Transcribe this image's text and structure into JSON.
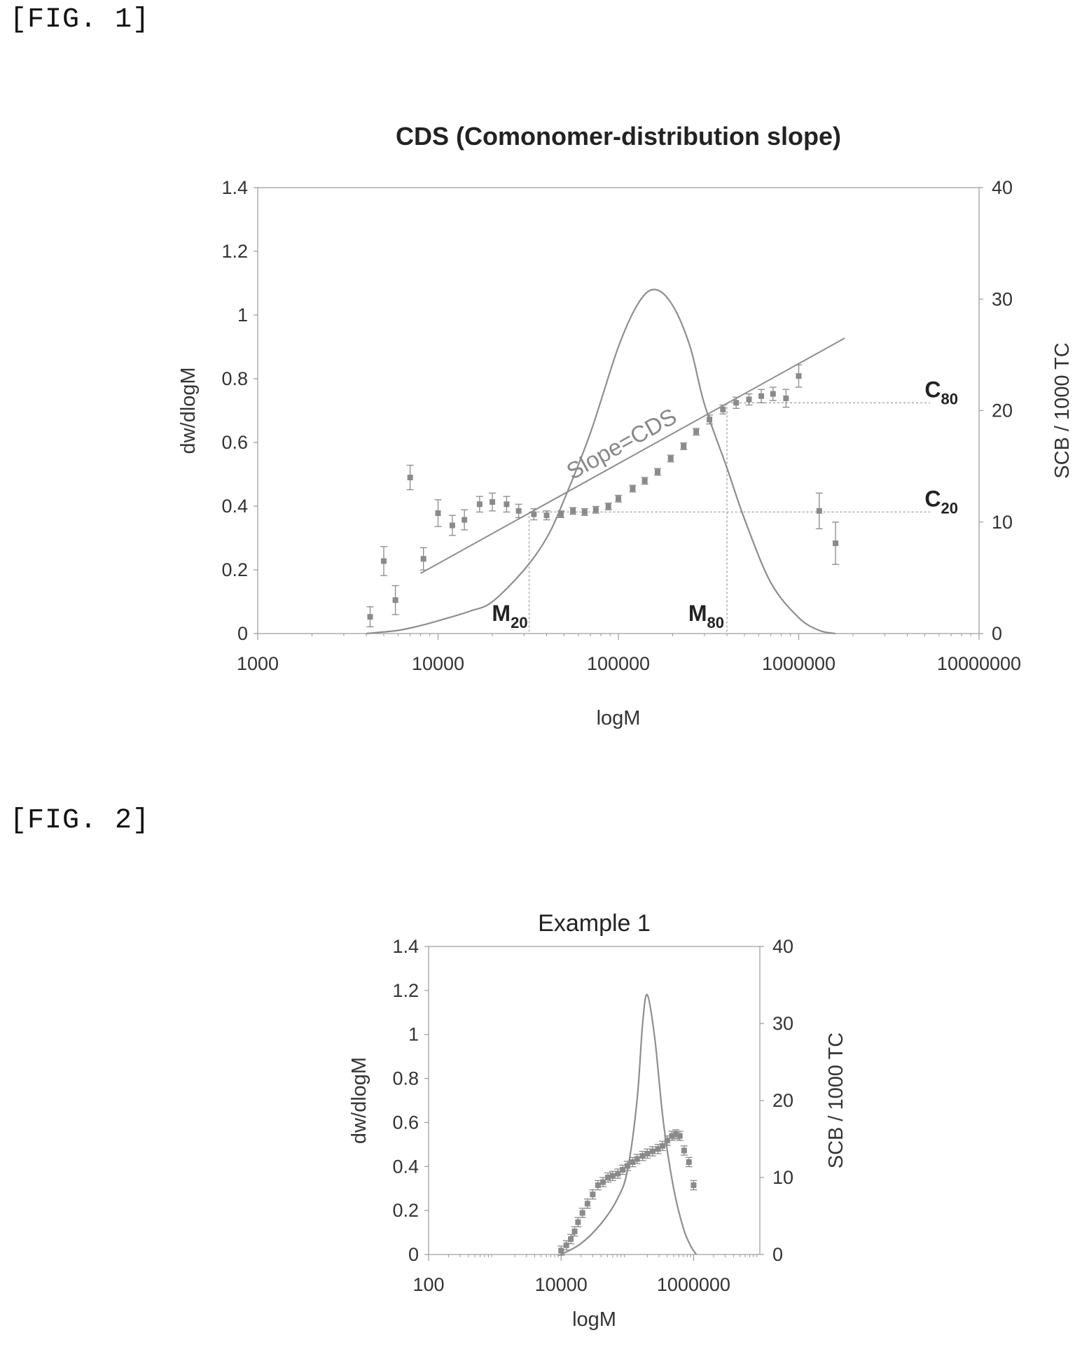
{
  "figures": [
    {
      "label": "[FIG. 1]"
    },
    {
      "label": "[FIG. 2]"
    }
  ],
  "colors": {
    "line": "#8e8e8e",
    "marker": "#8a8a8a",
    "guide": "#aaaaaa",
    "axis": "#999999"
  },
  "chart_data": [
    {
      "type": "line",
      "title": "CDS (Comonomer-distribution slope)",
      "xlabel": "logM",
      "ylabel": "dw/dlogM",
      "y2label": "SCB / 1000 TC",
      "xscale": "log",
      "xlim": [
        1000,
        10000000
      ],
      "ylim": [
        0,
        1.4
      ],
      "y2lim": [
        0,
        40
      ],
      "x_ticks": [
        "1000",
        "10000",
        "100000",
        "1000000",
        "10000000"
      ],
      "y_ticks": [
        "0",
        "0.2",
        "0.4",
        "0.6",
        "0.8",
        "1",
        "1.2",
        "1.4"
      ],
      "y2_ticks": [
        "0",
        "10",
        "20",
        "30",
        "40"
      ],
      "annotations": {
        "slope_text": "Slope=CDS",
        "m20": {
          "main": "M",
          "sub": "20",
          "x": 32000
        },
        "m80": {
          "main": "M",
          "sub": "80",
          "x": 400000
        },
        "c20": {
          "main": "C",
          "sub": "20",
          "y2": 10.9
        },
        "c80": {
          "main": "C",
          "sub": "80",
          "y2": 20.7
        }
      },
      "series": [
        {
          "kind": "mwd_curve",
          "axis": "left",
          "x": [
            4000,
            6000,
            8000,
            10000,
            15000,
            20000,
            30000,
            40000,
            50000,
            70000,
            100000,
            130000,
            160000,
            200000,
            250000,
            300000,
            400000,
            500000,
            700000,
            1000000,
            1300000,
            1600000
          ],
          "y": [
            0.0,
            0.01,
            0.025,
            0.04,
            0.07,
            0.1,
            0.2,
            0.3,
            0.42,
            0.63,
            0.9,
            1.04,
            1.08,
            1.03,
            0.9,
            0.72,
            0.52,
            0.36,
            0.16,
            0.05,
            0.01,
            0.0
          ]
        },
        {
          "kind": "scb_points",
          "axis": "right",
          "x": [
            4200,
            5000,
            5800,
            7000,
            8300,
            10000,
            12000,
            14000,
            17000,
            20000,
            24000,
            28000,
            34000,
            40000,
            48000,
            56000,
            65000,
            75000,
            88000,
            100000,
            120000,
            140000,
            165000,
            195000,
            230000,
            270000,
            320000,
            380000,
            450000,
            530000,
            620000,
            720000,
            850000,
            1000000,
            1300000,
            1600000
          ],
          "y": [
            1.5,
            6.5,
            3.0,
            14.0,
            6.7,
            10.8,
            9.7,
            10.2,
            11.6,
            11.8,
            11.6,
            11.0,
            10.7,
            10.6,
            10.7,
            11.0,
            10.9,
            11.1,
            11.4,
            12.1,
            13.0,
            13.7,
            14.5,
            15.7,
            16.8,
            18.1,
            19.2,
            20.1,
            20.7,
            21.0,
            21.3,
            21.5,
            21.1,
            23.1,
            11.0,
            8.1
          ],
          "err": [
            0.9,
            1.3,
            1.3,
            1.1,
            1.0,
            1.2,
            0.9,
            0.9,
            0.7,
            0.8,
            0.7,
            0.6,
            0.5,
            0.4,
            0.3,
            0.3,
            0.3,
            0.3,
            0.3,
            0.3,
            0.3,
            0.3,
            0.3,
            0.3,
            0.3,
            0.3,
            0.4,
            0.4,
            0.5,
            0.5,
            0.6,
            0.6,
            0.8,
            1.0,
            1.6,
            1.9
          ]
        },
        {
          "kind": "slope_line",
          "axis": "right",
          "x": [
            8000,
            1800000
          ],
          "y": [
            5.4,
            26.5
          ]
        }
      ]
    },
    {
      "type": "line",
      "title": "Example 1",
      "xlabel": "logM",
      "ylabel": "dw/dlogM",
      "y2label": "SCB / 1000 TC",
      "xscale": "log",
      "xlim": [
        100,
        10000000
      ],
      "ylim": [
        0,
        1.4
      ],
      "y2lim": [
        0,
        40
      ],
      "x_ticks": [
        "100",
        "10000",
        "1000000"
      ],
      "y_ticks": [
        "0",
        "0.2",
        "0.4",
        "0.6",
        "0.8",
        "1",
        "1.2",
        "1.4"
      ],
      "y2_ticks": [
        "0",
        "10",
        "20",
        "30",
        "40"
      ],
      "series": [
        {
          "kind": "mwd_curve",
          "axis": "left",
          "x": [
            10000,
            20000,
            40000,
            70000,
            100000,
            140000,
            170000,
            200000,
            260000,
            350000,
            500000,
            700000,
            900000,
            1100000
          ],
          "y": [
            0.0,
            0.05,
            0.14,
            0.25,
            0.38,
            0.7,
            1.05,
            1.18,
            0.98,
            0.6,
            0.3,
            0.12,
            0.04,
            0.0
          ]
        },
        {
          "kind": "scb_points",
          "axis": "right",
          "x": [
            10000,
            12000,
            14000,
            16000,
            18000,
            21000,
            25000,
            30000,
            36000,
            43000,
            51000,
            60000,
            72000,
            85000,
            100000,
            120000,
            140000,
            170000,
            200000,
            240000,
            290000,
            340000,
            400000,
            470000,
            540000,
            620000,
            720000,
            850000,
            1000000
          ],
          "y": [
            0.5,
            1.2,
            2.0,
            3.0,
            4.2,
            5.4,
            6.6,
            7.8,
            9.0,
            9.4,
            10.0,
            10.2,
            10.5,
            11.0,
            11.5,
            12.0,
            12.4,
            12.8,
            13.1,
            13.4,
            13.7,
            14.1,
            14.8,
            15.4,
            15.6,
            15.4,
            13.5,
            12.0,
            9.0
          ],
          "err": [
            0.6,
            0.6,
            0.6,
            0.6,
            0.6,
            0.6,
            0.6,
            0.6,
            0.6,
            0.6,
            0.6,
            0.6,
            0.6,
            0.6,
            0.6,
            0.6,
            0.6,
            0.6,
            0.6,
            0.6,
            0.6,
            0.6,
            0.6,
            0.6,
            0.6,
            0.6,
            0.6,
            0.6,
            0.6
          ]
        }
      ]
    }
  ]
}
